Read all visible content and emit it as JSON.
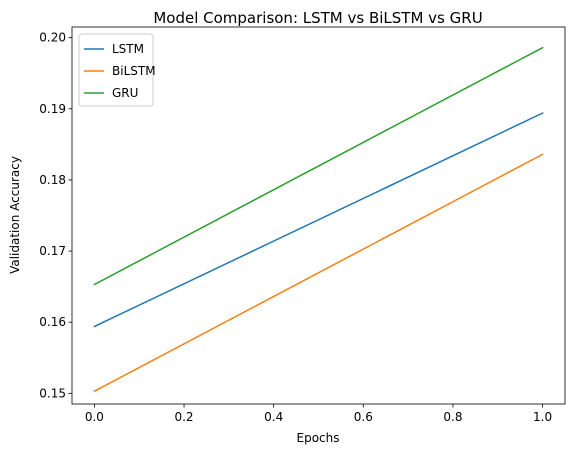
{
  "chart_data": {
    "type": "line",
    "title": "Model Comparison: LSTM vs BiLSTM vs GRU",
    "xlabel": "Epochs",
    "ylabel": "Validation Accuracy",
    "xlim": [
      -0.05,
      1.05
    ],
    "ylim": [
      0.1485,
      0.2015
    ],
    "xticks": [
      0.0,
      0.2,
      0.4,
      0.6,
      0.8,
      1.0
    ],
    "xtick_labels": [
      "0.0",
      "0.2",
      "0.4",
      "0.6",
      "0.8",
      "1.0"
    ],
    "yticks": [
      0.15,
      0.16,
      0.17,
      0.18,
      0.19,
      0.2
    ],
    "ytick_labels": [
      "0.15",
      "0.16",
      "0.17",
      "0.18",
      "0.19",
      "0.20"
    ],
    "grid": false,
    "legend_position": "upper-left",
    "series": [
      {
        "name": "LSTM",
        "color": "#1f77b4",
        "x": [
          0,
          1
        ],
        "y": [
          0.1594,
          0.1894
        ]
      },
      {
        "name": "BiLSTM",
        "color": "#ff7f0e",
        "x": [
          0,
          1
        ],
        "y": [
          0.1503,
          0.1836
        ]
      },
      {
        "name": "GRU",
        "color": "#2ca02c",
        "x": [
          0,
          1
        ],
        "y": [
          0.1653,
          0.1986
        ]
      }
    ]
  }
}
